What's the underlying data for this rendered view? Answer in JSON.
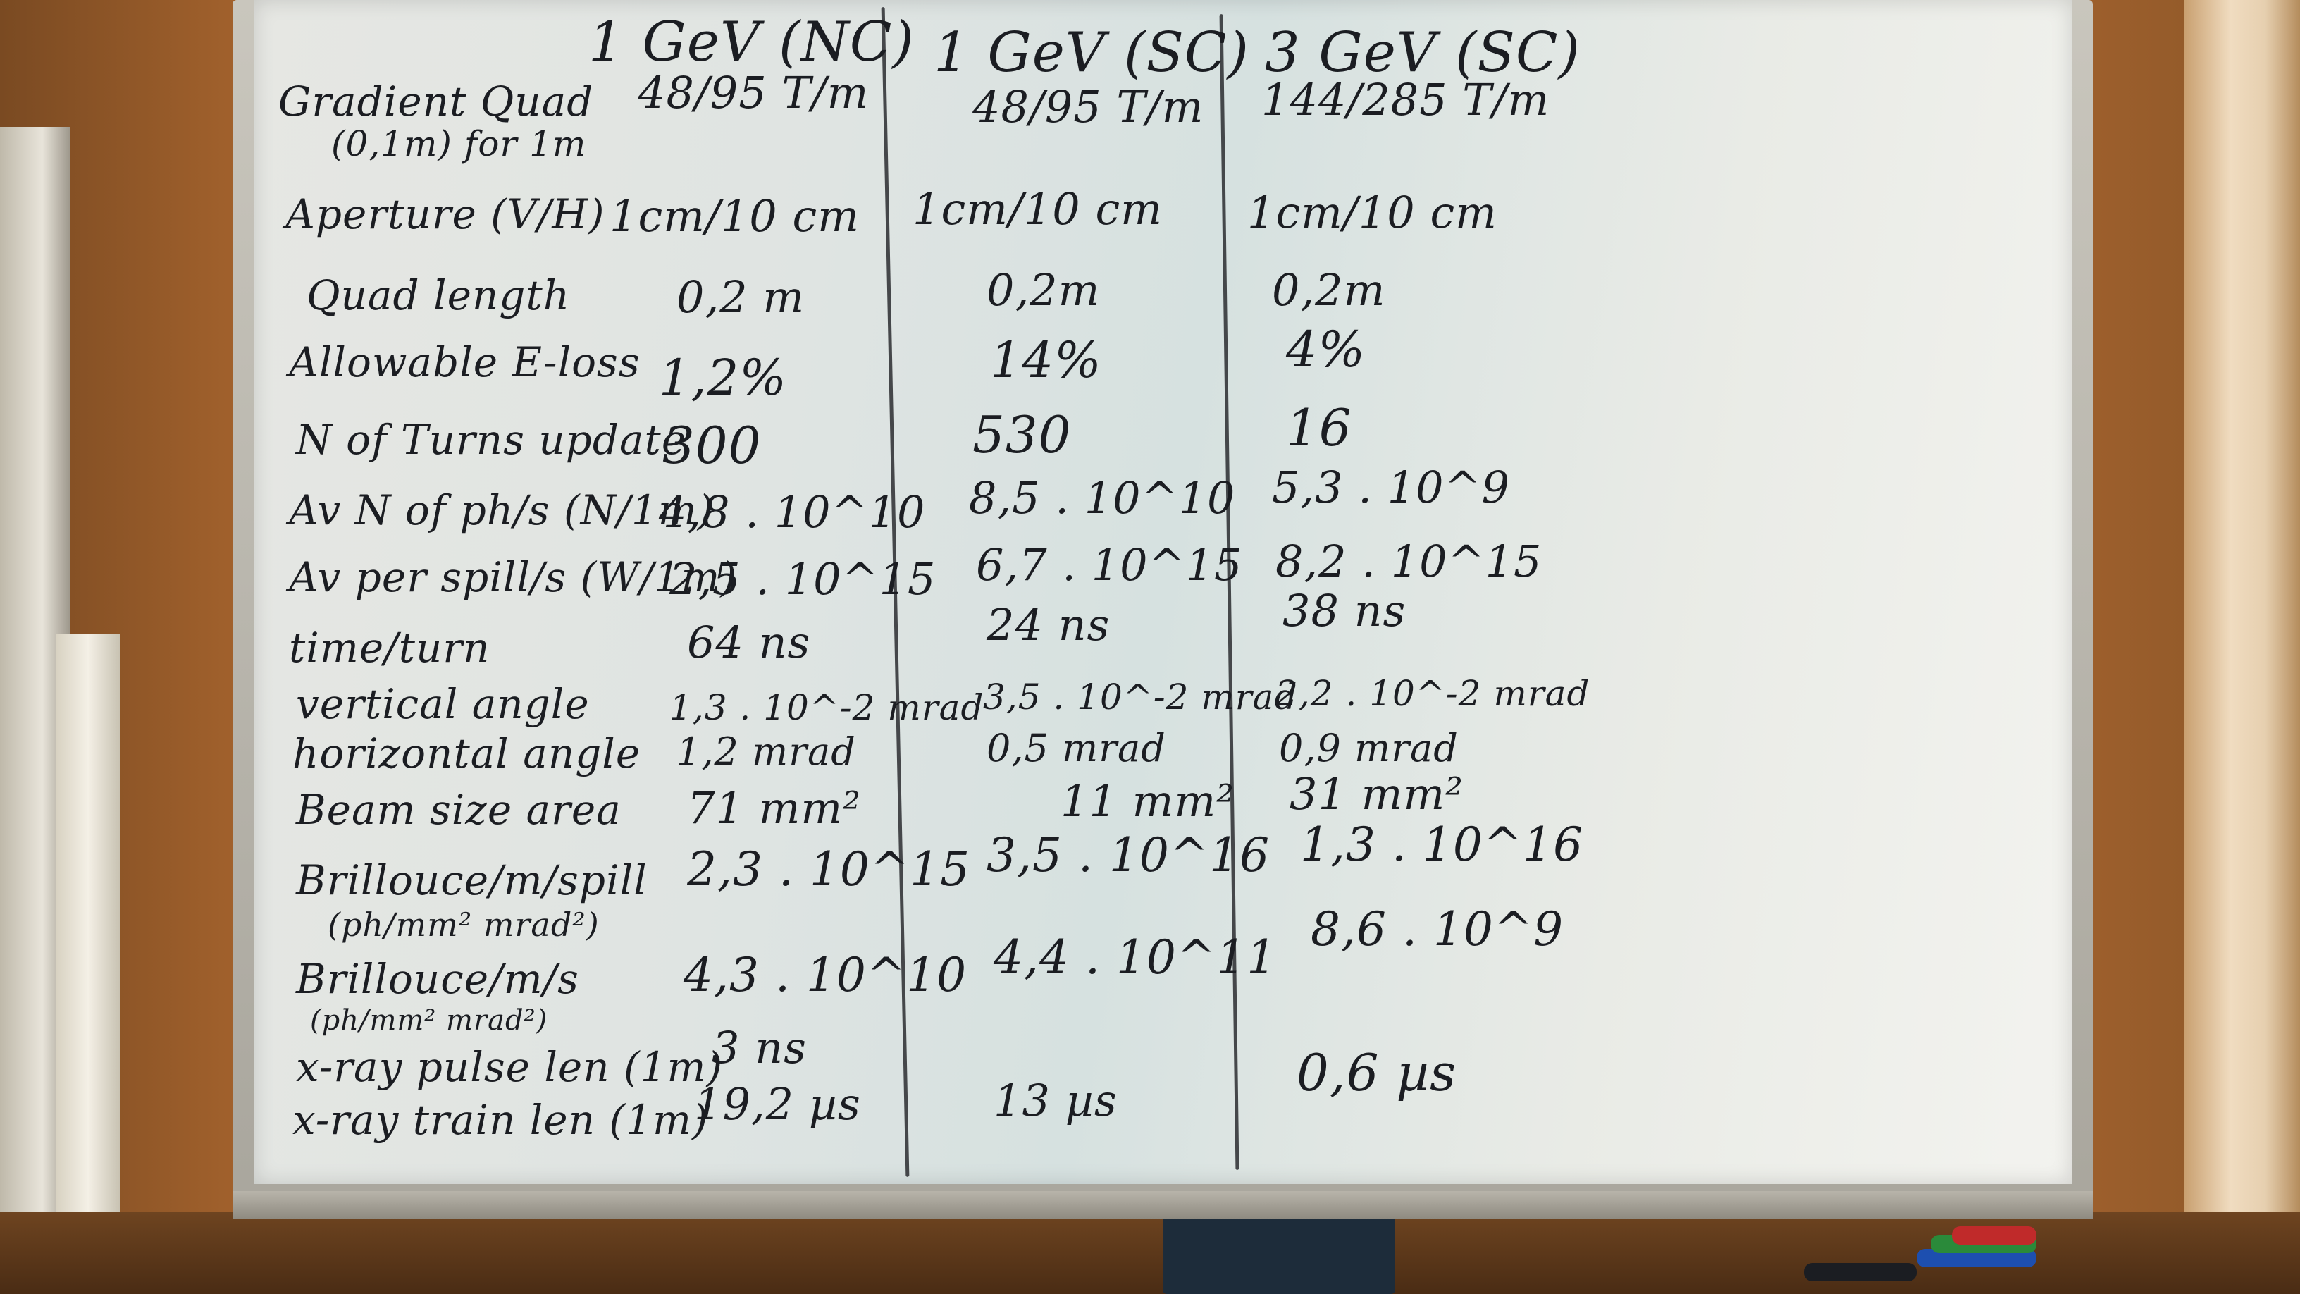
{
  "columns": [
    {
      "title": "1 GeV (NC)",
      "gradient": "48/95 T/m"
    },
    {
      "title": "1 GeV (SC)",
      "gradient": "48/95 T/m"
    },
    {
      "title": "3 GeV (SC)",
      "gradient": "144/285 T/m"
    }
  ],
  "rows": [
    {
      "label": "Gradient Quad",
      "values": [
        "48/95 T/m",
        "48/95 T/m",
        "144/285 T/m"
      ]
    },
    {
      "label": "(0,1m) for 1m",
      "values": [
        "",
        "",
        ""
      ]
    },
    {
      "label": "Aperture (V/H)",
      "values": [
        "1cm/10 cm",
        "1cm/10 cm",
        "1cm/10 cm"
      ]
    },
    {
      "label": "Quad length",
      "values": [
        "0,2 m",
        "0,2m",
        "0,2m"
      ]
    },
    {
      "label": "Allowable E-loss",
      "values": [
        "1,2%",
        "14%",
        "4%"
      ]
    },
    {
      "label": "N of Turns update",
      "values": [
        "300",
        "530",
        "16"
      ]
    },
    {
      "label": "Av N of ph/s (N/1m)",
      "values": [
        "4,8 . 10^10",
        "8,5 . 10^10",
        "5,3 . 10^9"
      ]
    },
    {
      "label": "Av per spill/s (W/1m)",
      "values": [
        "2,5 . 10^15",
        "6,7 . 10^15",
        "8,2 . 10^15"
      ]
    },
    {
      "label": "time/turn",
      "values": [
        "64 ns",
        "24 ns",
        "38 ns"
      ]
    },
    {
      "label": "vertical angle",
      "values": [
        "1,3 . 10^-2 mrad",
        "3,5 . 10^-2 mrad",
        "2,2 . 10^-2 mrad"
      ]
    },
    {
      "label": "horizontal angle",
      "values": [
        "1,2 mrad",
        "0,5 mrad",
        "0,9 mrad"
      ]
    },
    {
      "label": "Beam size area",
      "values": [
        "71 mm²",
        "11 mm²",
        "31 mm²"
      ]
    },
    {
      "label": "Brillouce/m/spill",
      "values": [
        "2,3 . 10^15",
        "3,5 . 10^16",
        "1,3 . 10^16"
      ]
    },
    {
      "label": "(ph/mm² mrad²)",
      "values": [
        "",
        "",
        ""
      ]
    },
    {
      "label": "Brillouce/m/s",
      "values": [
        "4,3 . 10^10",
        "4,4 . 10^11",
        "8,6 . 10^9"
      ]
    },
    {
      "label": "(ph/mm² mrad²)",
      "values": [
        "",
        "",
        ""
      ]
    },
    {
      "label": "x-ray pulse len (1m)",
      "values": [
        "3 ns",
        "",
        ""
      ]
    },
    {
      "label": "x-ray train len (1m)",
      "values": [
        "19,2 µs",
        "13 µs",
        "0,6 µs"
      ]
    }
  ],
  "marker_colors": [
    "#1b1d22",
    "#1d4fb0",
    "#2a8a3a",
    "#c02a2a"
  ]
}
